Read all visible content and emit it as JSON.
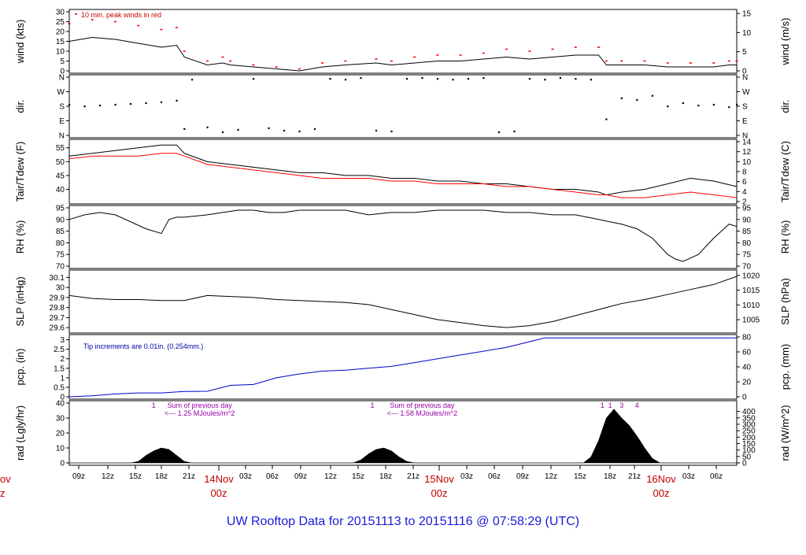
{
  "title": "UW Rooftop Data for 20151113  to  20151116 @ 07:58:29  (UTC)",
  "x_axis": {
    "hour_ticks": [
      "09z",
      "12z",
      "15z",
      "18z",
      "21z",
      "03z",
      "06z",
      "09z",
      "12z",
      "15z",
      "18z",
      "21z",
      "03z",
      "06z",
      "09z",
      "12z",
      "15z",
      "18z",
      "21z",
      "03z",
      "06z"
    ],
    "day_labels": [
      {
        "label": "14Nov",
        "sub": "00z"
      },
      {
        "label": "15Nov",
        "sub": "00z"
      },
      {
        "label": "16Nov",
        "sub": "00z"
      }
    ],
    "cut_label": {
      "label": "ov",
      "sub": "z"
    }
  },
  "chart_data": [
    {
      "type": "line",
      "id": "wind",
      "ylabel_left": "wind (kts)",
      "ylabel_right": "wind (m/s)",
      "ylim": [
        0,
        30
      ],
      "yticks": [
        0,
        5,
        10,
        15,
        20,
        25,
        30
      ],
      "right_ylim": [
        0,
        15.43
      ],
      "right_yticks": [
        0,
        5,
        10,
        15
      ],
      "annotation": "10 min. peak winds in red",
      "series": [
        {
          "name": "wind",
          "color": "#000000",
          "x": [
            0,
            3,
            6,
            9,
            12,
            14,
            15,
            18,
            20,
            21,
            24,
            27,
            30,
            33,
            36,
            40,
            42,
            45,
            48,
            51,
            54,
            57,
            60,
            63,
            66,
            69,
            70,
            72,
            75,
            78,
            81,
            84,
            86,
            87
          ],
          "values": [
            15,
            17,
            16,
            14,
            12,
            13,
            7,
            3,
            4,
            3,
            2,
            1,
            0,
            2,
            3,
            4,
            3,
            4,
            5,
            5,
            6,
            7,
            6,
            7,
            8,
            8,
            3,
            3,
            3,
            2,
            2,
            2,
            3,
            3
          ]
        },
        {
          "name": "10 min. peak winds",
          "color": "#ff0000",
          "x": [
            0,
            3,
            6,
            9,
            12,
            14,
            15,
            18,
            20,
            21,
            24,
            27,
            30,
            33,
            36,
            40,
            42,
            45,
            48,
            51,
            54,
            57,
            60,
            63,
            66,
            69,
            70,
            72,
            75,
            78,
            81,
            84,
            86,
            87
          ],
          "values": [
            24,
            26,
            25,
            23,
            21,
            22,
            10,
            5,
            7,
            5,
            3,
            2,
            1,
            4,
            5,
            6,
            5,
            7,
            8,
            8,
            9,
            11,
            10,
            11,
            12,
            12,
            5,
            5,
            5,
            4,
            4,
            4,
            5,
            5
          ]
        }
      ]
    },
    {
      "type": "scatter",
      "id": "dir",
      "ylabel_left": "dir.",
      "ylabel_right": "dir.",
      "ylim": [
        0,
        360
      ],
      "yticks": [
        0,
        90,
        180,
        270,
        360
      ],
      "ytick_labels": [
        "N",
        "E",
        "S",
        "W",
        "N"
      ],
      "series": [
        {
          "name": "direction",
          "color": "#000000",
          "x": [
            0,
            2,
            4,
            6,
            8,
            10,
            12,
            14,
            15,
            16,
            18,
            20,
            22,
            24,
            26,
            28,
            30,
            32,
            34,
            36,
            38,
            40,
            42,
            44,
            46,
            48,
            50,
            52,
            54,
            56,
            58,
            60,
            62,
            64,
            66,
            68,
            70,
            72,
            74,
            76,
            78,
            80,
            82,
            84,
            86,
            87
          ],
          "values": [
            190,
            180,
            185,
            190,
            195,
            200,
            205,
            215,
            40,
            345,
            50,
            20,
            35,
            350,
            45,
            30,
            25,
            40,
            350,
            345,
            355,
            30,
            25,
            350,
            355,
            350,
            345,
            350,
            355,
            20,
            25,
            350,
            345,
            355,
            350,
            345,
            100,
            230,
            220,
            245,
            180,
            200,
            185,
            190,
            175,
            190
          ]
        }
      ]
    },
    {
      "type": "line",
      "id": "temp",
      "ylabel_left": "Tair/Tdew (F)",
      "ylabel_right": "Tair/Tdew (C)",
      "ylim": [
        35.6,
        57.2
      ],
      "yticks": [
        40,
        45,
        50,
        55
      ],
      "right_ylim": [
        2,
        14
      ],
      "right_yticks": [
        2,
        4,
        6,
        8,
        10,
        12,
        14
      ],
      "series": [
        {
          "name": "Tair",
          "color": "#000000",
          "x": [
            0,
            3,
            6,
            9,
            12,
            14,
            15,
            18,
            21,
            24,
            27,
            30,
            33,
            36,
            39,
            42,
            45,
            48,
            51,
            54,
            57,
            60,
            63,
            66,
            69,
            70,
            72,
            75,
            78,
            81,
            84,
            87
          ],
          "values": [
            52,
            53,
            54,
            55,
            56,
            56,
            53,
            50,
            49,
            48,
            47,
            46,
            46,
            45,
            45,
            44,
            44,
            43,
            43,
            42,
            42,
            41,
            40,
            40,
            39,
            38,
            39,
            40,
            42,
            44,
            43,
            41
          ]
        },
        {
          "name": "Tdew",
          "color": "#ff0000",
          "x": [
            0,
            3,
            6,
            9,
            12,
            14,
            15,
            18,
            21,
            24,
            27,
            30,
            33,
            36,
            39,
            42,
            45,
            48,
            51,
            54,
            57,
            60,
            63,
            66,
            69,
            70,
            72,
            75,
            78,
            81,
            84,
            87
          ],
          "values": [
            51,
            52,
            52,
            52,
            53,
            53,
            52,
            49,
            48,
            47,
            46,
            45,
            44,
            44,
            44,
            43,
            43,
            42,
            42,
            42,
            41,
            41,
            40,
            39,
            38,
            38,
            37,
            37,
            38,
            39,
            38,
            37
          ]
        }
      ]
    },
    {
      "type": "line",
      "id": "rh",
      "ylabel_left": "RH (%)",
      "ylabel_right": "RH (%)",
      "ylim": [
        70,
        95
      ],
      "yticks": [
        70,
        75,
        80,
        85,
        90,
        95
      ],
      "series": [
        {
          "name": "RH",
          "color": "#000000",
          "x": [
            0,
            2,
            4,
            6,
            8,
            10,
            12,
            13,
            14,
            15,
            18,
            20,
            22,
            24,
            26,
            28,
            30,
            33,
            36,
            39,
            42,
            45,
            48,
            51,
            54,
            57,
            60,
            63,
            66,
            69,
            72,
            74,
            75,
            76,
            78,
            79,
            80,
            82,
            84,
            86,
            87
          ],
          "values": [
            90,
            92,
            93,
            92,
            89,
            86,
            84,
            90,
            91,
            91,
            92,
            93,
            94,
            94,
            93,
            93,
            94,
            94,
            94,
            92,
            93,
            93,
            94,
            94,
            94,
            93,
            93,
            92,
            92,
            90,
            88,
            86,
            84,
            82,
            75,
            73,
            72,
            75,
            82,
            88,
            87
          ]
        }
      ]
    },
    {
      "type": "line",
      "id": "slp",
      "ylabel_left": "SLP (inHg)",
      "ylabel_right": "SLP (hPa)",
      "ylim": [
        29.57,
        30.15
      ],
      "yticks": [
        29.6,
        29.7,
        29.8,
        29.9,
        30.0,
        30.1
      ],
      "right_ylim": [
        1001.3,
        1021
      ],
      "right_yticks": [
        1005,
        1010,
        1015,
        1020
      ],
      "series": [
        {
          "name": "SLP",
          "color": "#000000",
          "x": [
            0,
            3,
            6,
            9,
            12,
            15,
            18,
            21,
            24,
            27,
            30,
            33,
            36,
            39,
            42,
            45,
            48,
            51,
            54,
            57,
            60,
            63,
            66,
            69,
            72,
            75,
            78,
            81,
            84,
            87
          ],
          "values": [
            29.92,
            29.89,
            29.88,
            29.88,
            29.87,
            29.87,
            29.92,
            29.91,
            29.9,
            29.88,
            29.87,
            29.86,
            29.85,
            29.83,
            29.78,
            29.73,
            29.68,
            29.65,
            29.62,
            29.6,
            29.62,
            29.66,
            29.72,
            29.78,
            29.84,
            29.88,
            29.93,
            29.98,
            30.03,
            30.11
          ]
        }
      ]
    },
    {
      "type": "area",
      "id": "pcp",
      "ylabel_left": "pcp. (in)",
      "ylabel_right": "pcp. (mm)",
      "ylim": [
        0,
        3.15
      ],
      "yticks": [
        0.0,
        0.5,
        1.0,
        1.5,
        2.0,
        2.5,
        3.0
      ],
      "right_ylim": [
        0,
        80
      ],
      "right_yticks": [
        0,
        20,
        40,
        60,
        80
      ],
      "annotation": "Tip increments are 0.01in. (0.254mm.)",
      "series": [
        {
          "name": "accumulated precipitation",
          "color": "#0000cc",
          "x": [
            0,
            3,
            6,
            9,
            12,
            15,
            18,
            21,
            24,
            27,
            30,
            33,
            36,
            39,
            42,
            45,
            48,
            51,
            54,
            57,
            60,
            62,
            63,
            64,
            66,
            87
          ],
          "values": [
            0.0,
            0.05,
            0.15,
            0.2,
            0.2,
            0.28,
            0.29,
            0.6,
            0.65,
            1.0,
            1.2,
            1.35,
            1.4,
            1.5,
            1.6,
            1.8,
            2.0,
            2.2,
            2.4,
            2.6,
            2.9,
            3.1,
            3.1,
            3.1,
            3.1,
            3.1
          ]
        }
      ]
    },
    {
      "type": "area",
      "id": "rad",
      "ylabel_left": "rad (Lgly/hr)",
      "ylabel_right": "rad (W/m^2)",
      "ylim": [
        0,
        40
      ],
      "yticks": [
        0,
        10,
        20,
        30,
        40
      ],
      "right_ylim": [
        0,
        465
      ],
      "right_yticks": [
        0,
        50,
        100,
        150,
        200,
        250,
        300,
        350,
        400
      ],
      "annotations": [
        {
          "text": "1",
          "x": 11
        },
        {
          "text": "Sum of previous day",
          "x": 17
        },
        {
          "text": "<--- 1.25 MJoules/m^2",
          "x": 17
        },
        {
          "text": "1",
          "x": 39.5
        },
        {
          "text": "Sum of previous day",
          "x": 46
        },
        {
          "text": "<--- 1.58 MJoules/m^2",
          "x": 46
        },
        {
          "text": "1",
          "x": 69.5
        },
        {
          "text": "1",
          "x": 70.5
        },
        {
          "text": "3",
          "x": 72
        },
        {
          "text": "4",
          "x": 74
        }
      ],
      "series": [
        {
          "name": "solar radiation",
          "color": "#000000",
          "x": [
            0,
            8,
            9,
            10,
            11,
            12,
            13,
            14,
            15,
            16,
            30,
            37,
            38,
            39,
            40,
            41,
            42,
            43,
            44,
            45,
            66,
            67,
            68,
            69,
            70,
            71,
            72,
            73,
            74,
            75,
            76,
            77,
            87
          ],
          "values": [
            0,
            0,
            1,
            5,
            8,
            10,
            9,
            5,
            1,
            0,
            0,
            0,
            2,
            6,
            9,
            10,
            8,
            4,
            1,
            0,
            0,
            0,
            4,
            15,
            30,
            36,
            30,
            25,
            18,
            10,
            3,
            0,
            0
          ]
        }
      ]
    }
  ]
}
